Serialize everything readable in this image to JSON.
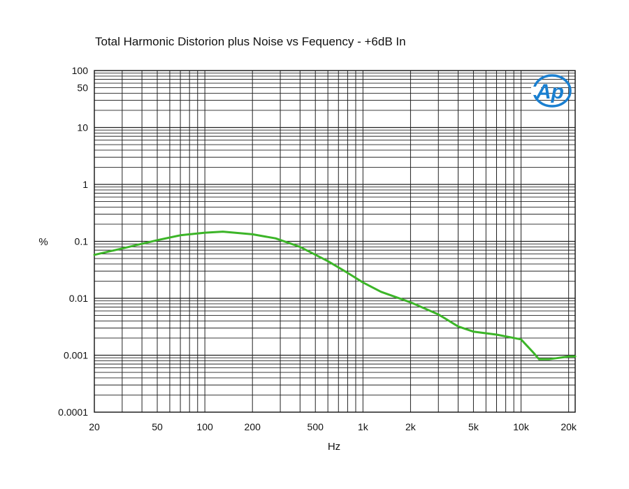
{
  "chart_data": {
    "type": "line",
    "title": "Total Harmonic Distorion plus Noise vs Fequency - +6dB In",
    "xlabel": "Hz",
    "ylabel": "%",
    "xscale": "log",
    "yscale": "log",
    "xlim": [
      20,
      22000
    ],
    "ylim": [
      0.0001,
      100
    ],
    "xticks": [
      {
        "value": 20,
        "label": "20"
      },
      {
        "value": 50,
        "label": "50"
      },
      {
        "value": 100,
        "label": "100"
      },
      {
        "value": 200,
        "label": "200"
      },
      {
        "value": 500,
        "label": "500"
      },
      {
        "value": 1000,
        "label": "1k"
      },
      {
        "value": 2000,
        "label": "2k"
      },
      {
        "value": 5000,
        "label": "5k"
      },
      {
        "value": 10000,
        "label": "10k"
      },
      {
        "value": 20000,
        "label": "20k"
      }
    ],
    "yticks": [
      {
        "value": 100,
        "label": "100"
      },
      {
        "value": 50,
        "label": "50"
      },
      {
        "value": 10,
        "label": "10"
      },
      {
        "value": 1,
        "label": "1"
      },
      {
        "value": 0.1,
        "label": "0.1"
      },
      {
        "value": 0.01,
        "label": "0.01"
      },
      {
        "value": 0.001,
        "label": "0.001"
      },
      {
        "value": 0.0001,
        "label": "0.0001"
      }
    ],
    "grid": true,
    "series": [
      {
        "color": "#3cb528",
        "x": [
          20,
          30,
          50,
          70,
          100,
          130,
          200,
          280,
          400,
          600,
          800,
          1000,
          1300,
          2000,
          3000,
          4000,
          5000,
          7000,
          10000,
          12000,
          13000,
          15000,
          20000,
          22000
        ],
        "y": [
          0.058,
          0.075,
          0.105,
          0.128,
          0.142,
          0.148,
          0.133,
          0.113,
          0.08,
          0.045,
          0.028,
          0.019,
          0.013,
          0.0085,
          0.0052,
          0.0032,
          0.0026,
          0.0023,
          0.0019,
          0.0011,
          0.00085,
          0.00085,
          0.00095,
          0.00095
        ]
      }
    ]
  },
  "logo": {
    "text": "Ap",
    "color": "#1a7fd0"
  }
}
